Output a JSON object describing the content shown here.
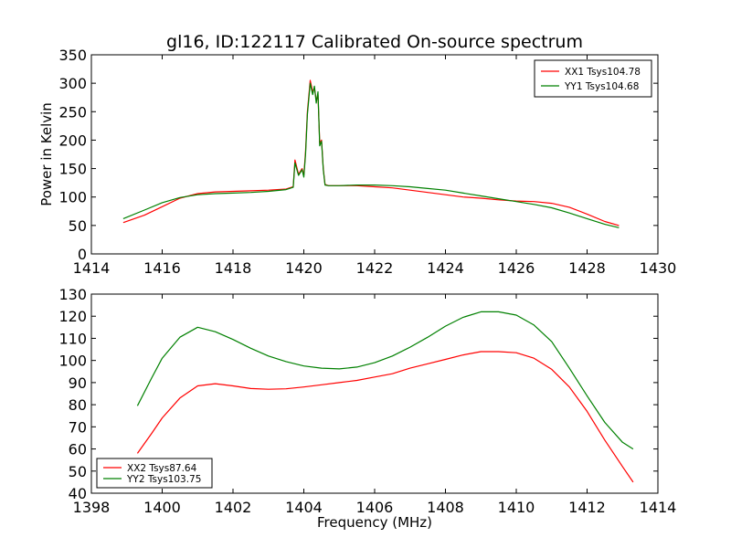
{
  "figure": {
    "title": "gl16, ID:122117 Calibrated On-source spectrum"
  },
  "chart_data": [
    {
      "type": "line",
      "title": "gl16, ID:122117 Calibrated On-source spectrum",
      "xlabel": "",
      "ylabel": "Power in Kelvin",
      "xlim": [
        1414,
        1430
      ],
      "ylim": [
        0,
        350
      ],
      "xticks": [
        "1414",
        "1416",
        "1418",
        "1420",
        "1422",
        "1424",
        "1426",
        "1428",
        "1430"
      ],
      "yticks": [
        "0",
        "50",
        "100",
        "150",
        "200",
        "250",
        "300",
        "350"
      ],
      "grid": false,
      "legend_position": "upper right",
      "series": [
        {
          "name": "XX1 Tsys104.78",
          "color": "#ff0000",
          "x": [
            1414.9,
            1415.5,
            1416.0,
            1416.5,
            1417.0,
            1417.5,
            1418.0,
            1418.5,
            1419.0,
            1419.5,
            1419.7,
            1419.75,
            1419.85,
            1419.95,
            1420.0,
            1420.05,
            1420.1,
            1420.18,
            1420.25,
            1420.3,
            1420.35,
            1420.4,
            1420.45,
            1420.5,
            1420.55,
            1420.6,
            1420.7,
            1421.0,
            1421.5,
            1422.0,
            1422.5,
            1423.0,
            1423.5,
            1424.0,
            1424.5,
            1425.0,
            1425.5,
            1426.0,
            1426.5,
            1427.0,
            1427.5,
            1428.0,
            1428.5,
            1428.9
          ],
          "values": [
            55,
            68,
            83,
            98,
            106,
            109,
            110,
            111,
            112,
            114,
            118,
            165,
            140,
            150,
            138,
            180,
            250,
            305,
            285,
            292,
            270,
            280,
            195,
            200,
            150,
            122,
            120,
            120,
            120,
            118,
            116,
            112,
            108,
            104,
            100,
            98,
            95,
            93,
            92,
            89,
            82,
            70,
            57,
            50
          ]
        },
        {
          "name": "YY1 Tsys104.68",
          "color": "#008000",
          "x": [
            1414.9,
            1415.5,
            1416.0,
            1416.5,
            1417.0,
            1417.5,
            1418.0,
            1418.5,
            1419.0,
            1419.5,
            1419.7,
            1419.75,
            1419.85,
            1419.95,
            1420.0,
            1420.05,
            1420.1,
            1420.18,
            1420.25,
            1420.3,
            1420.35,
            1420.4,
            1420.45,
            1420.5,
            1420.55,
            1420.6,
            1420.7,
            1421.0,
            1421.5,
            1422.0,
            1422.5,
            1423.0,
            1423.5,
            1424.0,
            1424.5,
            1425.0,
            1425.5,
            1426.0,
            1426.5,
            1427.0,
            1427.5,
            1428.0,
            1428.5,
            1428.9
          ],
          "values": [
            62,
            77,
            90,
            99,
            104,
            106,
            107,
            108,
            110,
            113,
            117,
            160,
            138,
            148,
            135,
            175,
            245,
            300,
            280,
            295,
            265,
            285,
            190,
            198,
            148,
            121,
            120,
            120,
            121,
            121,
            120,
            118,
            115,
            112,
            107,
            102,
            97,
            92,
            87,
            81,
            72,
            62,
            52,
            46
          ]
        }
      ]
    },
    {
      "type": "line",
      "title": "",
      "xlabel": "Frequency (MHz)",
      "ylabel": "",
      "xlim": [
        1398,
        1414
      ],
      "ylim": [
        40,
        130
      ],
      "xticks": [
        "1398",
        "1400",
        "1402",
        "1404",
        "1406",
        "1408",
        "1410",
        "1412",
        "1414"
      ],
      "yticks": [
        "40",
        "50",
        "60",
        "70",
        "80",
        "90",
        "100",
        "110",
        "120",
        "130"
      ],
      "grid": false,
      "legend_position": "lower left",
      "series": [
        {
          "name": "XX2 Tsys87.64",
          "color": "#ff0000",
          "x": [
            1399.3,
            1399.7,
            1400.0,
            1400.5,
            1401.0,
            1401.5,
            1402.0,
            1402.5,
            1403.0,
            1403.5,
            1404.0,
            1404.5,
            1405.0,
            1405.5,
            1406.0,
            1406.5,
            1407.0,
            1407.5,
            1408.0,
            1408.5,
            1409.0,
            1409.5,
            1410.0,
            1410.5,
            1411.0,
            1411.5,
            1412.0,
            1412.5,
            1413.0,
            1413.3
          ],
          "values": [
            58,
            67,
            74,
            83,
            88.5,
            89.5,
            88.5,
            87.3,
            87,
            87.2,
            88,
            89,
            90,
            91,
            92.5,
            94,
            96.5,
            98.5,
            100.5,
            102.5,
            104,
            104,
            103.5,
            101,
            96,
            88,
            77,
            64,
            52,
            45
          ]
        },
        {
          "name": "YY2 Tsys103.75",
          "color": "#008000",
          "x": [
            1399.3,
            1399.7,
            1400.0,
            1400.5,
            1401.0,
            1401.5,
            1402.0,
            1402.5,
            1403.0,
            1403.5,
            1404.0,
            1404.5,
            1405.0,
            1405.5,
            1406.0,
            1406.5,
            1407.0,
            1407.5,
            1408.0,
            1408.5,
            1409.0,
            1409.5,
            1410.0,
            1410.5,
            1411.0,
            1411.5,
            1412.0,
            1412.5,
            1413.0,
            1413.3
          ],
          "values": [
            79.5,
            92,
            101,
            110.5,
            115,
            113,
            109.5,
            105.5,
            102,
            99.5,
            97.5,
            96.5,
            96.2,
            97,
            99,
            102,
            106,
            110.5,
            115.5,
            119.5,
            122,
            122,
            120.5,
            116,
            108.5,
            96.5,
            84,
            72,
            63,
            60
          ]
        }
      ]
    }
  ]
}
